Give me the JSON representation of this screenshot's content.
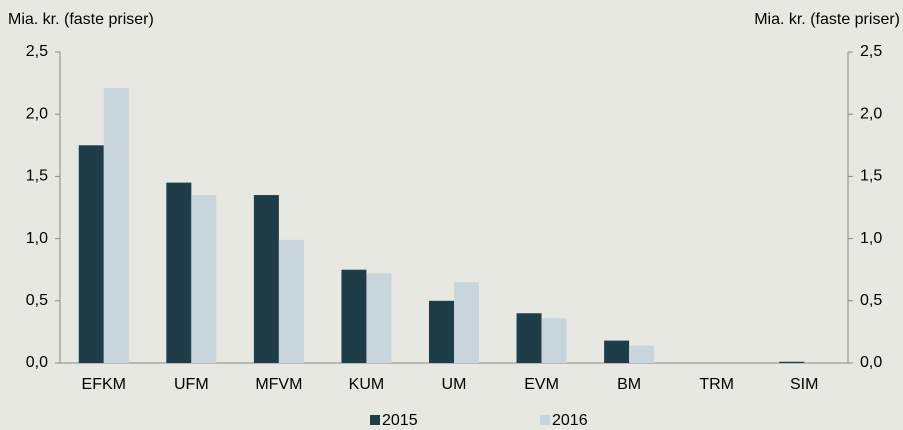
{
  "chart_data": {
    "type": "bar",
    "ylabel": "Mia. kr. (faste priser)",
    "y2label": "Mia. kr. (faste priser)",
    "categories": [
      "EFKM",
      "UFM",
      "MFVM",
      "KUM",
      "UM",
      "EVM",
      "BM",
      "TRM",
      "SIM"
    ],
    "series": [
      {
        "name": "2015",
        "color": "#1e3d48",
        "values": [
          1.75,
          1.45,
          1.35,
          0.75,
          0.5,
          0.4,
          0.18,
          0,
          0.01
        ]
      },
      {
        "name": "2016",
        "color": "#c9d5dc",
        "values": [
          2.21,
          1.35,
          0.99,
          0.72,
          0.65,
          0.36,
          0.14,
          0,
          0
        ]
      }
    ],
    "ylim": [
      0,
      2.5
    ],
    "yticks": [
      {
        "value": 0,
        "label": "0,0"
      },
      {
        "value": 0.5,
        "label": "0,5"
      },
      {
        "value": 1,
        "label": "1,0"
      },
      {
        "value": 1.5,
        "label": "1,5"
      },
      {
        "value": 2,
        "label": "2,0"
      },
      {
        "value": 2.5,
        "label": "2,5"
      }
    ],
    "y2lim": [
      0,
      2.5
    ],
    "y2ticks": [
      {
        "value": 0,
        "label": "0,0"
      },
      {
        "value": 0.5,
        "label": "0,5"
      },
      {
        "value": 1,
        "label": "1,0"
      },
      {
        "value": 1.5,
        "label": "1,5"
      },
      {
        "value": 2,
        "label": "2,0"
      },
      {
        "value": 2.5,
        "label": "2,5"
      }
    ],
    "legend": "bottom"
  }
}
